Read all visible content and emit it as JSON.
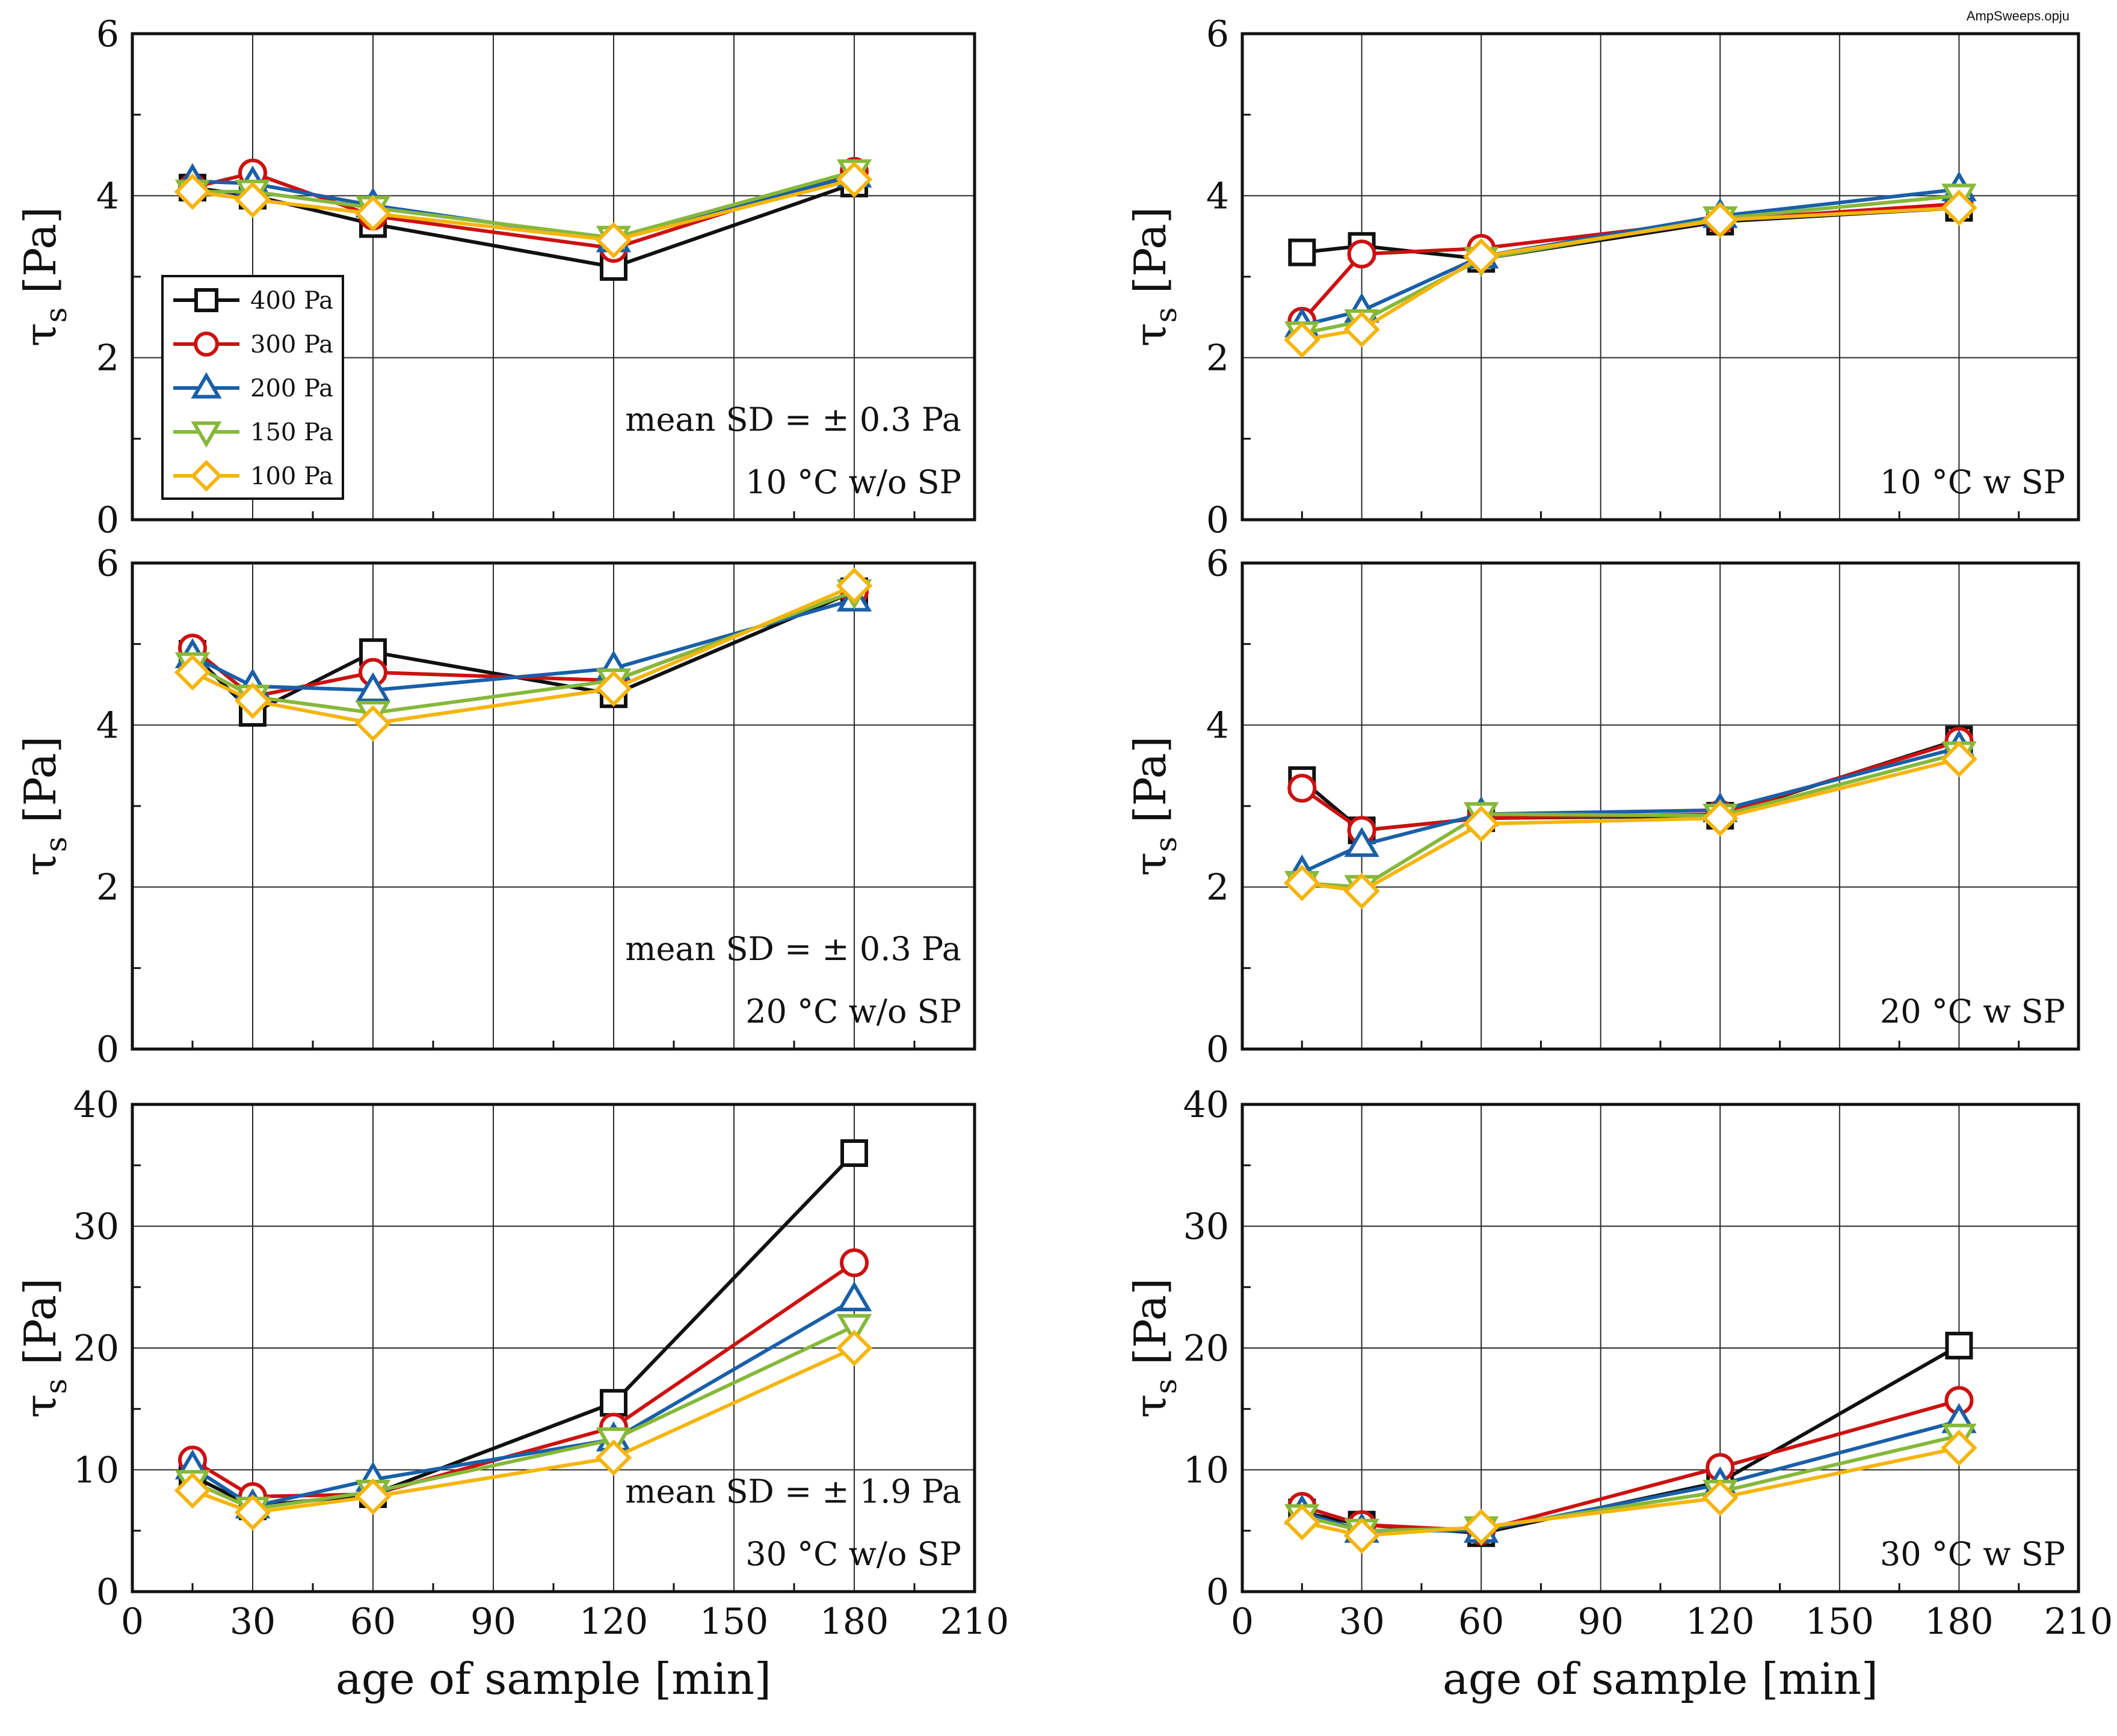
{
  "file_label": "AmpSweeps.opju",
  "colors": {
    "400 Pa": "#111111",
    "300 Pa": "#cc1111",
    "200 Pa": "#1a5fa8",
    "150 Pa": "#86b83a",
    "100 Pa": "#f5b50f"
  },
  "markers": {
    "400 Pa": "square",
    "300 Pa": "circle",
    "200 Pa": "triangle-up",
    "150 Pa": "triangle-down",
    "100 Pa": "diamond"
  },
  "chart_data": [
    {
      "type": "line",
      "panel": "top-left",
      "xlabel": "",
      "ylabel": "τ",
      "ylabel_sub": "s",
      "ylabel_unit": "[Pa]",
      "xlim": [
        0,
        210
      ],
      "ylim": [
        0,
        6
      ],
      "xticks": [
        0,
        30,
        60,
        90,
        120,
        150,
        180,
        210
      ],
      "yticks": [
        0,
        2,
        4,
        6
      ],
      "show_xtick_labels": false,
      "grid": true,
      "x": [
        15,
        30,
        60,
        120,
        180
      ],
      "series": [
        {
          "name": "400 Pa",
          "values": [
            4.1,
            4.0,
            3.65,
            3.12,
            4.15
          ]
        },
        {
          "name": "300 Pa",
          "values": [
            4.1,
            4.28,
            3.75,
            3.35,
            4.3
          ]
        },
        {
          "name": "200 Pa",
          "values": [
            4.18,
            4.15,
            3.88,
            3.45,
            4.25
          ]
        },
        {
          "name": "150 Pa",
          "values": [
            4.05,
            4.05,
            3.85,
            3.48,
            4.3
          ]
        },
        {
          "name": "100 Pa",
          "values": [
            4.05,
            3.95,
            3.78,
            3.45,
            4.2
          ]
        }
      ],
      "legend": {
        "placement": "left-middle",
        "entries": [
          "400 Pa",
          "300 Pa",
          "200 Pa",
          "150 Pa",
          "100 Pa"
        ]
      },
      "annotations": [
        "mean SD = ± 0.3 Pa",
        "10 °C w/o SP"
      ]
    },
    {
      "type": "line",
      "panel": "top-right",
      "xlabel": "",
      "ylabel": "τ",
      "ylabel_sub": "s",
      "ylabel_unit": "[Pa]",
      "xlim": [
        0,
        210
      ],
      "ylim": [
        0,
        6
      ],
      "xticks": [
        0,
        30,
        60,
        90,
        120,
        150,
        180,
        210
      ],
      "yticks": [
        0,
        2,
        4,
        6
      ],
      "show_xtick_labels": false,
      "grid": true,
      "x": [
        15,
        30,
        60,
        120,
        180
      ],
      "series": [
        {
          "name": "400 Pa",
          "values": [
            3.3,
            3.38,
            3.22,
            3.68,
            3.85
          ]
        },
        {
          "name": "300 Pa",
          "values": [
            2.45,
            3.28,
            3.35,
            3.7,
            3.9
          ]
        },
        {
          "name": "200 Pa",
          "values": [
            2.4,
            2.58,
            3.25,
            3.75,
            4.08
          ]
        },
        {
          "name": "150 Pa",
          "values": [
            2.3,
            2.45,
            3.22,
            3.72,
            4.0
          ]
        },
        {
          "name": "100 Pa",
          "values": [
            2.22,
            2.35,
            3.25,
            3.7,
            3.85
          ]
        }
      ],
      "annotations": [
        "10 °C w SP"
      ]
    },
    {
      "type": "line",
      "panel": "middle-left",
      "xlabel": "",
      "ylabel": "τ",
      "ylabel_sub": "s",
      "ylabel_unit": "[Pa]",
      "xlim": [
        0,
        210
      ],
      "ylim": [
        0,
        6
      ],
      "xticks": [
        0,
        30,
        60,
        90,
        120,
        150,
        180,
        210
      ],
      "yticks": [
        0,
        2,
        4,
        6
      ],
      "show_xtick_labels": false,
      "grid": true,
      "x": [
        15,
        30,
        60,
        120,
        180
      ],
      "series": [
        {
          "name": "400 Pa",
          "values": [
            4.88,
            4.15,
            4.9,
            4.38,
            5.65
          ]
        },
        {
          "name": "300 Pa",
          "values": [
            4.95,
            4.35,
            4.65,
            4.55,
            5.65
          ]
        },
        {
          "name": "200 Pa",
          "values": [
            4.85,
            4.48,
            4.43,
            4.7,
            5.55
          ]
        },
        {
          "name": "150 Pa",
          "values": [
            4.75,
            4.35,
            4.15,
            4.55,
            5.65
          ]
        },
        {
          "name": "100 Pa",
          "values": [
            4.65,
            4.3,
            4.02,
            4.45,
            5.72
          ]
        }
      ],
      "annotations": [
        "mean SD = ± 0.3 Pa",
        "20 °C w/o SP"
      ]
    },
    {
      "type": "line",
      "panel": "middle-right",
      "xlabel": "",
      "ylabel": "τ",
      "ylabel_sub": "s",
      "ylabel_unit": "[Pa]",
      "xlim": [
        0,
        210
      ],
      "ylim": [
        0,
        6
      ],
      "xticks": [
        0,
        30,
        60,
        90,
        120,
        150,
        180,
        210
      ],
      "yticks": [
        0,
        2,
        4,
        6
      ],
      "show_xtick_labels": false,
      "grid": true,
      "x": [
        15,
        30,
        60,
        120,
        180
      ],
      "series": [
        {
          "name": "400 Pa",
          "values": [
            3.32,
            2.7,
            2.85,
            2.88,
            3.82
          ]
        },
        {
          "name": "300 Pa",
          "values": [
            3.22,
            2.7,
            2.85,
            2.9,
            3.8
          ]
        },
        {
          "name": "200 Pa",
          "values": [
            2.18,
            2.52,
            2.9,
            2.95,
            3.72
          ]
        },
        {
          "name": "150 Pa",
          "values": [
            2.05,
            2.0,
            2.9,
            2.88,
            3.65
          ]
        },
        {
          "name": "100 Pa",
          "values": [
            2.05,
            1.95,
            2.78,
            2.85,
            3.58
          ]
        }
      ],
      "annotations": [
        "20 °C w SP"
      ]
    },
    {
      "type": "line",
      "panel": "bottom-left",
      "xlabel": "age of sample [min]",
      "ylabel": "τ",
      "ylabel_sub": "s",
      "ylabel_unit": "[Pa]",
      "xlim": [
        0,
        210
      ],
      "ylim": [
        0,
        40
      ],
      "xticks": [
        0,
        30,
        60,
        90,
        120,
        150,
        180,
        210
      ],
      "yticks": [
        0,
        10,
        20,
        30,
        40
      ],
      "show_xtick_labels": true,
      "grid": true,
      "x": [
        15,
        30,
        60,
        120,
        180
      ],
      "series": [
        {
          "name": "400 Pa",
          "values": [
            9.5,
            7.0,
            8.0,
            15.5,
            36.0
          ]
        },
        {
          "name": "300 Pa",
          "values": [
            10.8,
            7.8,
            8.0,
            13.5,
            27.0
          ]
        },
        {
          "name": "200 Pa",
          "values": [
            10.2,
            7.0,
            9.2,
            12.5,
            24.0
          ]
        },
        {
          "name": "150 Pa",
          "values": [
            9.0,
            6.8,
            8.2,
            12.5,
            21.8
          ]
        },
        {
          "name": "100 Pa",
          "values": [
            8.3,
            6.5,
            7.8,
            11.0,
            20.0
          ]
        }
      ],
      "annotations": [
        "mean SD = ± 1.9 Pa",
        "30 °C w/o SP"
      ]
    },
    {
      "type": "line",
      "panel": "bottom-right",
      "xlabel": "age of sample [min]",
      "ylabel": "τ",
      "ylabel_sub": "s",
      "ylabel_unit": "[Pa]",
      "xlim": [
        0,
        210
      ],
      "ylim": [
        0,
        40
      ],
      "xticks": [
        0,
        30,
        60,
        90,
        120,
        150,
        180,
        210
      ],
      "yticks": [
        0,
        10,
        20,
        30,
        40
      ],
      "show_xtick_labels": true,
      "grid": true,
      "x": [
        15,
        30,
        60,
        120,
        180
      ],
      "series": [
        {
          "name": "400 Pa",
          "values": [
            6.5,
            5.5,
            4.8,
            9.0,
            20.2
          ]
        },
        {
          "name": "300 Pa",
          "values": [
            7.0,
            5.5,
            5.0,
            10.2,
            15.7
          ]
        },
        {
          "name": "200 Pa",
          "values": [
            6.5,
            5.0,
            5.0,
            8.8,
            14.0
          ]
        },
        {
          "name": "150 Pa",
          "values": [
            6.2,
            5.0,
            5.2,
            8.2,
            12.8
          ]
        },
        {
          "name": "100 Pa",
          "values": [
            5.7,
            4.6,
            5.3,
            7.7,
            11.8
          ]
        }
      ],
      "annotations": [
        "30 °C w SP"
      ]
    }
  ]
}
